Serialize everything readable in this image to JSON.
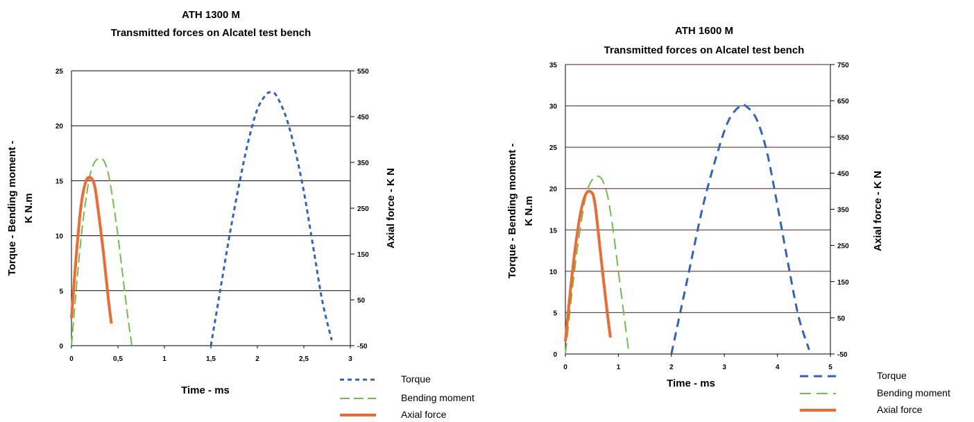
{
  "colors": {
    "torque": "#2e63c4",
    "bending": "#6cc04a",
    "axial": "#f06a30"
  },
  "chart_data": [
    {
      "type": "line",
      "title": [
        "ATH 1300 M",
        "Transmitted forces on Alcatel test bench"
      ],
      "xlabel": "Time - ms",
      "ylabel": [
        "Torque - Bending moment -",
        "K N.m"
      ],
      "y2label": "Axial force - K N",
      "xlim": [
        0,
        3
      ],
      "ylim": [
        0,
        25
      ],
      "y2lim": [
        -50,
        550
      ],
      "xticks": [
        "0",
        "0,5",
        "1",
        "1,5",
        "2",
        "2,5",
        "3"
      ],
      "yticks": [
        "0",
        "5",
        "10",
        "15",
        "20",
        "25"
      ],
      "y2ticks": [
        "-50",
        "50",
        "150",
        "250",
        "350",
        "450",
        "550"
      ],
      "legend": [
        "Torque",
        "Bending moment",
        "Axial force"
      ],
      "series": [
        {
          "name": "Torque",
          "x": [
            1.5,
            1.6,
            1.7,
            1.8,
            1.9,
            2.0,
            2.1,
            2.15,
            2.2,
            2.3,
            2.4,
            2.5,
            2.6,
            2.7,
            2.8
          ],
          "y": [
            0,
            5,
            10,
            14.5,
            18.5,
            21.5,
            22.9,
            23.0,
            22.8,
            21.0,
            18.0,
            14.0,
            9.0,
            4.0,
            0.5
          ]
        },
        {
          "name": "Bending moment",
          "x": [
            0,
            0.05,
            0.1,
            0.15,
            0.2,
            0.25,
            0.3,
            0.35,
            0.4,
            0.45,
            0.5,
            0.55,
            0.6,
            0.65
          ],
          "y": [
            0,
            5,
            9.5,
            13,
            15.5,
            16.7,
            17.0,
            16.8,
            15.5,
            13.0,
            10.0,
            6.5,
            3.0,
            0
          ]
        },
        {
          "name": "Axial force",
          "x": [
            0,
            0.05,
            0.1,
            0.15,
            0.2,
            0.25,
            0.3,
            0.35,
            0.4,
            0.43
          ],
          "y": [
            2.5,
            8,
            12.5,
            14.8,
            15.3,
            14.5,
            11.5,
            8.0,
            4.0,
            2.0
          ]
        }
      ]
    },
    {
      "type": "line",
      "title": [
        "ATH 1600 M",
        "Transmitted forces on Alcatel test bench"
      ],
      "xlabel": "Time - ms",
      "ylabel": [
        "Torque - Bending moment -",
        "K N.m"
      ],
      "y2label": "Axial force - K N",
      "xlim": [
        0,
        5
      ],
      "ylim": [
        0,
        35
      ],
      "y2lim": [
        -50,
        750
      ],
      "xticks": [
        "0",
        "1",
        "2",
        "3",
        "4",
        "5"
      ],
      "yticks": [
        "0",
        "5",
        "10",
        "15",
        "20",
        "25",
        "30",
        "35"
      ],
      "y2ticks": [
        "-50",
        "50",
        "150",
        "250",
        "350",
        "450",
        "550",
        "650",
        "750"
      ],
      "legend": [
        "Torque",
        "Bending moment",
        "Axial force"
      ],
      "series": [
        {
          "name": "Torque",
          "x": [
            2.0,
            2.3,
            2.6,
            2.9,
            3.1,
            3.3,
            3.4,
            3.6,
            3.8,
            4.0,
            4.2,
            4.4,
            4.6
          ],
          "y": [
            0,
            9,
            18,
            25,
            28.5,
            30.0,
            30.0,
            28.5,
            24.5,
            18.0,
            11.0,
            4.5,
            0.5
          ]
        },
        {
          "name": "Bending moment",
          "x": [
            0,
            0.1,
            0.2,
            0.3,
            0.4,
            0.5,
            0.6,
            0.7,
            0.8,
            0.9,
            1.0,
            1.1,
            1.2
          ],
          "y": [
            0,
            6,
            11.5,
            16,
            19.5,
            21.0,
            21.5,
            21.0,
            19.0,
            15.0,
            10.0,
            5.0,
            0
          ]
        },
        {
          "name": "Axial force",
          "x": [
            0,
            0.1,
            0.2,
            0.3,
            0.4,
            0.5,
            0.55,
            0.6,
            0.7,
            0.8,
            0.85
          ],
          "y": [
            1.5,
            8.0,
            13.5,
            17.5,
            19.5,
            19.5,
            18.5,
            16.0,
            10.0,
            4.5,
            2.0
          ]
        }
      ]
    }
  ]
}
